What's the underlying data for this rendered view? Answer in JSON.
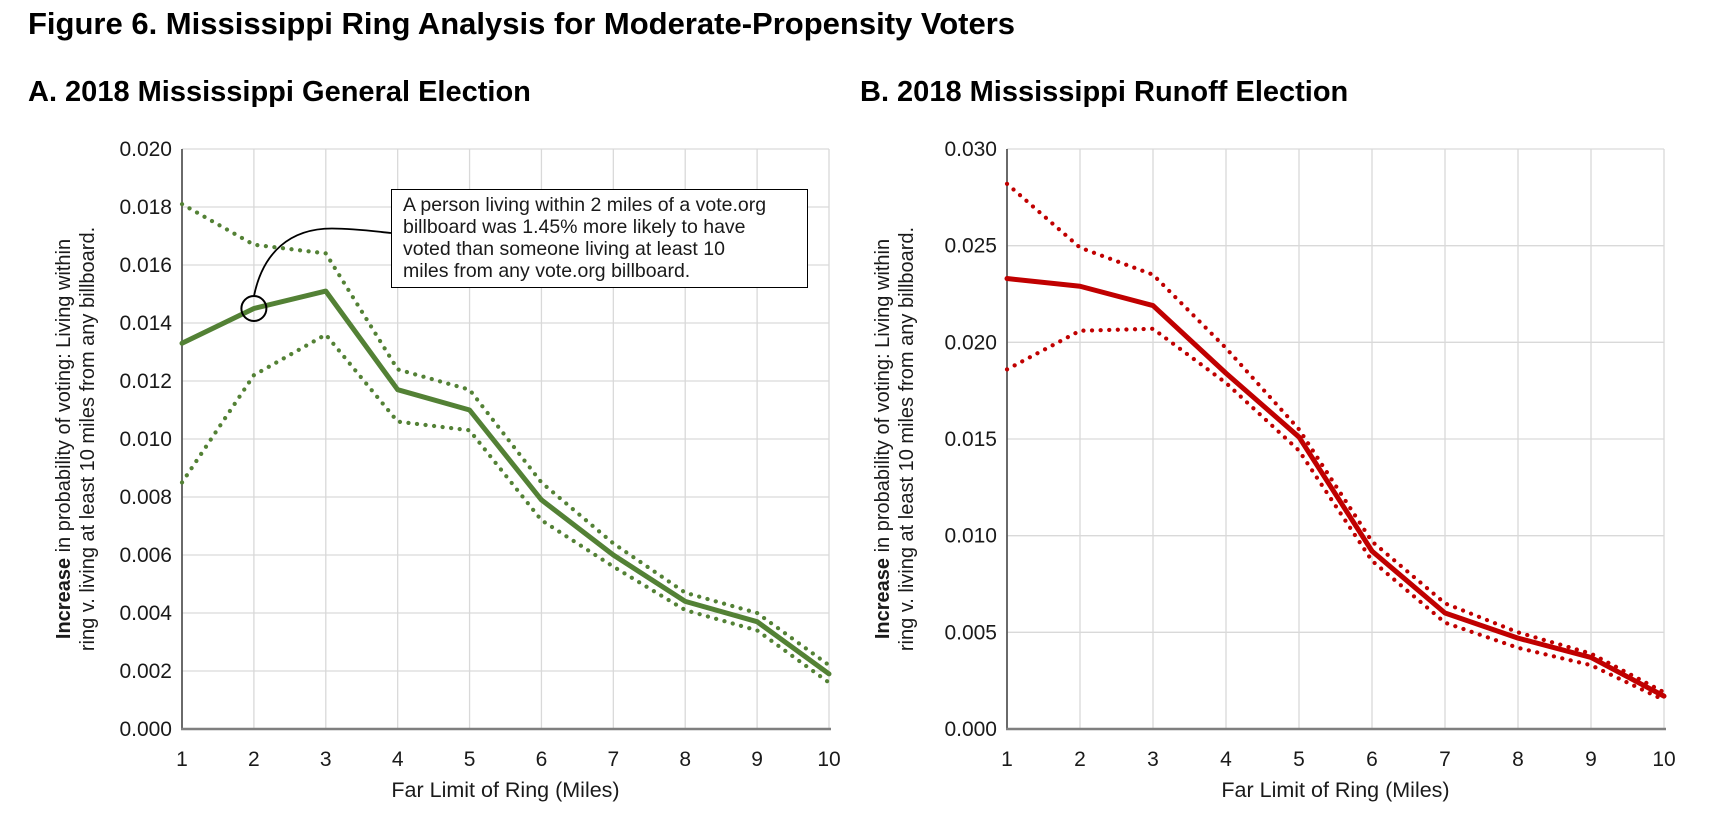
{
  "figure": {
    "title": "Figure 6. Mississippi Ring Analysis for Moderate-Propensity Voters"
  },
  "colors": {
    "green_series": "#538135",
    "red_series": "#C00000",
    "gridline": "#D9D9D9",
    "axis": "#7F7F7F",
    "annotation_border": "#000000"
  },
  "annotation": {
    "lines": [
      "A person living within 2 miles of a vote.org",
      "billboard was 1.45% more likely to have",
      "voted than someone living at least 10",
      "miles from any vote.org billboard."
    ],
    "circled_point": {
      "panel": "A",
      "x": 2,
      "value": 0.0145
    }
  },
  "chart_data": [
    {
      "type": "line",
      "title": "A. 2018 Mississippi General Election",
      "xlabel": "Far Limit of Ring (Miles)",
      "ylabel": {
        "bold": "Increase",
        "line1_rest": " in probability of voting: Living within",
        "line2": "ring v. living at least 10 miles from any billboard."
      },
      "color": "#538135",
      "grid": true,
      "ylim": [
        0,
        0.02
      ],
      "x": [
        1,
        2,
        3,
        4,
        5,
        6,
        7,
        8,
        9,
        10
      ],
      "xticks": [
        "1",
        "2",
        "3",
        "4",
        "5",
        "6",
        "7",
        "8",
        "9",
        "10"
      ],
      "yticks": [
        "0.000",
        "0.002",
        "0.004",
        "0.006",
        "0.008",
        "0.010",
        "0.012",
        "0.014",
        "0.016",
        "0.018",
        "0.020"
      ],
      "series": [
        {
          "name": "estimate",
          "style": "solid",
          "values": [
            0.0133,
            0.0145,
            0.0151,
            0.0117,
            0.011,
            0.0079,
            0.006,
            0.0044,
            0.0037,
            0.0019
          ]
        },
        {
          "name": "upper_bound",
          "style": "dotted",
          "values": [
            0.0181,
            0.0167,
            0.0164,
            0.0124,
            0.0117,
            0.0085,
            0.0064,
            0.0047,
            0.004,
            0.0022
          ]
        },
        {
          "name": "lower_bound",
          "style": "dotted",
          "values": [
            0.0085,
            0.0122,
            0.0136,
            0.0106,
            0.0103,
            0.0072,
            0.0056,
            0.0041,
            0.0034,
            0.0016
          ]
        }
      ]
    },
    {
      "type": "line",
      "title": "B. 2018 Mississippi Runoff Election",
      "xlabel": "Far Limit of Ring (Miles)",
      "ylabel": {
        "bold": "Increase",
        "line1_rest": " in probability of voting: Living within",
        "line2": "ring v. living at least 10 miles from any billboard."
      },
      "color": "#C00000",
      "grid": true,
      "ylim": [
        0,
        0.03
      ],
      "x": [
        1,
        2,
        3,
        4,
        5,
        6,
        7,
        8,
        9,
        10
      ],
      "xticks": [
        "1",
        "2",
        "3",
        "4",
        "5",
        "6",
        "7",
        "8",
        "9",
        "10"
      ],
      "yticks": [
        "0.000",
        "0.005",
        "0.010",
        "0.015",
        "0.020",
        "0.025",
        "0.030"
      ],
      "series": [
        {
          "name": "estimate",
          "style": "solid",
          "values": [
            0.0233,
            0.0229,
            0.0219,
            0.0184,
            0.0151,
            0.0092,
            0.006,
            0.0047,
            0.0037,
            0.0017
          ]
        },
        {
          "name": "upper_bound",
          "style": "dotted",
          "values": [
            0.0282,
            0.0249,
            0.0235,
            0.0197,
            0.0155,
            0.0097,
            0.0065,
            0.005,
            0.0039,
            0.0019
          ]
        },
        {
          "name": "lower_bound",
          "style": "dotted",
          "values": [
            0.0186,
            0.0206,
            0.0207,
            0.0179,
            0.0144,
            0.0087,
            0.0055,
            0.0042,
            0.0033,
            0.0015
          ]
        }
      ]
    }
  ]
}
